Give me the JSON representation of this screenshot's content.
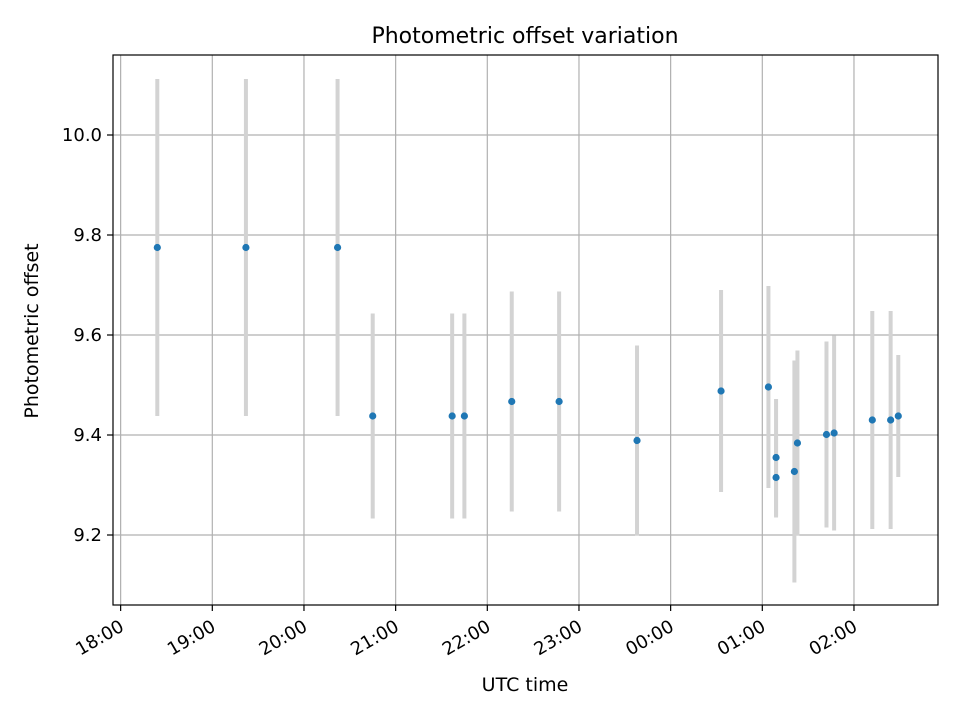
{
  "chart_data": {
    "type": "scatter",
    "title": "Photometric offset variation",
    "xlabel": "UTC time",
    "ylabel": "Photometric offset",
    "grid": true,
    "x_axis": {
      "kind": "time",
      "range_start": "17:55",
      "range_end": "02:55 (+1 day)",
      "ticks": [
        "18:00",
        "19:00",
        "20:00",
        "21:00",
        "22:00",
        "23:00",
        "00:00",
        "01:00",
        "02:00"
      ]
    },
    "y_axis": {
      "ylim": [
        9.06,
        10.16
      ],
      "ticks": [
        "9.2",
        "9.4",
        "9.6",
        "9.8",
        "10.0"
      ]
    },
    "series": [
      {
        "style": "points with error bars",
        "point_color": "#1f77b4",
        "errorbar_color": "#d3d3d3",
        "points": [
          {
            "time": "18:24",
            "y": 9.775,
            "err": 0.337
          },
          {
            "time": "19:22",
            "y": 9.775,
            "err": 0.337
          },
          {
            "time": "20:22",
            "y": 9.775,
            "err": 0.337
          },
          {
            "time": "20:45",
            "y": 9.438,
            "err": 0.205
          },
          {
            "time": "21:37",
            "y": 9.438,
            "err": 0.205
          },
          {
            "time": "21:45",
            "y": 9.438,
            "err": 0.205
          },
          {
            "time": "22:16",
            "y": 9.467,
            "err": 0.22
          },
          {
            "time": "22:47",
            "y": 9.467,
            "err": 0.22
          },
          {
            "time": "23:38",
            "y": 9.389,
            "err": 0.19
          },
          {
            "time": "00:33",
            "y": 9.488,
            "err": 0.202
          },
          {
            "time": "01:04",
            "y": 9.496,
            "err": 0.202
          },
          {
            "time": "01:09",
            "y": 9.355,
            "err": 0.117
          },
          {
            "time": "01:09",
            "y": 9.315,
            "err": 0.08
          },
          {
            "time": "01:21",
            "y": 9.327,
            "err": 0.222
          },
          {
            "time": "01:23",
            "y": 9.384,
            "err": 0.185
          },
          {
            "time": "01:42",
            "y": 9.401,
            "err": 0.186
          },
          {
            "time": "01:47",
            "y": 9.404,
            "err": 0.195
          },
          {
            "time": "02:12",
            "y": 9.43,
            "err": 0.218
          },
          {
            "time": "02:24",
            "y": 9.43,
            "err": 0.218
          },
          {
            "time": "02:29",
            "y": 9.438,
            "err": 0.122
          }
        ]
      }
    ]
  }
}
